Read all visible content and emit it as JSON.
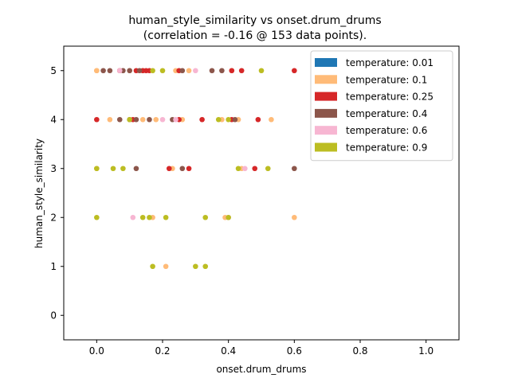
{
  "chart_data": {
    "type": "scatter",
    "title": "human_style_similarity vs onset.drum_drums",
    "subtitle": "(correlation = -0.16 @ 153 data points).",
    "xlabel": "onset.drum_drums",
    "ylabel": "human_style_similarity",
    "xlim": [
      -0.1,
      1.1
    ],
    "ylim": [
      -0.5,
      5.5
    ],
    "xticks": [
      "0.0",
      "0.2",
      "0.4",
      "0.6",
      "0.8",
      "1.0"
    ],
    "yticks": [
      "0",
      "1",
      "2",
      "3",
      "4",
      "5"
    ],
    "grid": false,
    "legend_position": "top-right",
    "series": [
      {
        "name": "temperature: 0.01",
        "color": "#1f77b4",
        "points": []
      },
      {
        "name": "temperature: 0.1",
        "color": "#ffbb78",
        "points": [
          [
            0.0,
            5
          ],
          [
            0.0,
            5
          ],
          [
            0.07,
            5
          ],
          [
            0.1,
            5
          ],
          [
            0.14,
            5
          ],
          [
            0.24,
            5
          ],
          [
            0.28,
            5
          ],
          [
            0.41,
            5
          ],
          [
            0.04,
            4
          ],
          [
            0.14,
            4
          ],
          [
            0.18,
            4
          ],
          [
            0.26,
            4
          ],
          [
            0.38,
            4
          ],
          [
            0.43,
            4
          ],
          [
            0.53,
            4
          ],
          [
            0.0,
            3
          ],
          [
            0.23,
            3
          ],
          [
            0.44,
            3
          ],
          [
            0.17,
            2
          ],
          [
            0.39,
            2
          ],
          [
            0.6,
            2
          ],
          [
            0.21,
            1
          ]
        ]
      },
      {
        "name": "temperature: 0.25",
        "color": "#d62728",
        "points": [
          [
            0.07,
            5
          ],
          [
            0.12,
            5
          ],
          [
            0.14,
            5
          ],
          [
            0.15,
            5
          ],
          [
            0.16,
            5
          ],
          [
            0.25,
            5
          ],
          [
            0.41,
            5
          ],
          [
            0.44,
            5
          ],
          [
            0.6,
            5
          ],
          [
            0.0,
            4
          ],
          [
            0.11,
            4
          ],
          [
            0.25,
            4
          ],
          [
            0.32,
            4
          ],
          [
            0.41,
            4
          ],
          [
            0.49,
            4
          ],
          [
            0.22,
            3
          ],
          [
            0.28,
            3
          ],
          [
            0.48,
            3
          ]
        ]
      },
      {
        "name": "temperature: 0.4",
        "color": "#8c564b",
        "points": [
          [
            0.02,
            5
          ],
          [
            0.04,
            5
          ],
          [
            0.08,
            5
          ],
          [
            0.1,
            5
          ],
          [
            0.13,
            5
          ],
          [
            0.26,
            5
          ],
          [
            0.35,
            5
          ],
          [
            0.38,
            5
          ],
          [
            0.07,
            4
          ],
          [
            0.1,
            4
          ],
          [
            0.12,
            4
          ],
          [
            0.16,
            4
          ],
          [
            0.23,
            4
          ],
          [
            0.42,
            4
          ],
          [
            0.12,
            3
          ],
          [
            0.26,
            3
          ],
          [
            0.6,
            3
          ]
        ]
      },
      {
        "name": "temperature: 0.6",
        "color": "#f7b6d2",
        "points": [
          [
            0.07,
            5
          ],
          [
            0.3,
            5
          ],
          [
            0.2,
            4
          ],
          [
            0.24,
            4
          ],
          [
            0.45,
            3
          ],
          [
            0.11,
            2
          ],
          [
            0.4,
            2
          ]
        ]
      },
      {
        "name": "temperature: 0.9",
        "color": "#bcbd22",
        "points": [
          [
            0.17,
            5
          ],
          [
            0.2,
            5
          ],
          [
            0.5,
            5
          ],
          [
            0.1,
            4
          ],
          [
            0.37,
            4
          ],
          [
            0.4,
            4
          ],
          [
            0.0,
            3
          ],
          [
            0.05,
            3
          ],
          [
            0.08,
            3
          ],
          [
            0.43,
            3
          ],
          [
            0.52,
            3
          ],
          [
            0.0,
            2
          ],
          [
            0.14,
            2
          ],
          [
            0.16,
            2
          ],
          [
            0.21,
            2
          ],
          [
            0.33,
            2
          ],
          [
            0.4,
            2
          ],
          [
            0.17,
            1
          ],
          [
            0.3,
            1
          ],
          [
            0.33,
            1
          ]
        ]
      }
    ]
  }
}
